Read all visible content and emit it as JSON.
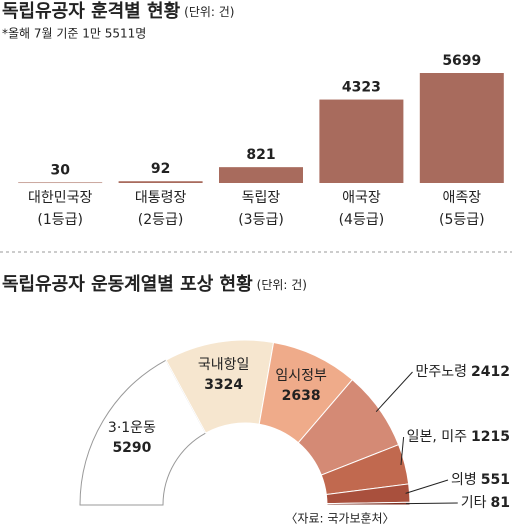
{
  "chart_data": [
    {
      "type": "bar",
      "title": "독립유공자 훈격별 현황",
      "unit": "(단위: 건)",
      "note": "*올해 7월 기준 1만 5511명",
      "categories": [
        "대한민국장",
        "대통령장",
        "독립장",
        "애국장",
        "애족장"
      ],
      "category_notes": [
        "(1등급)",
        "(2등급)",
        "(3등급)",
        "(4등급)",
        "(5등급)"
      ],
      "values": [
        30,
        92,
        821,
        4323,
        5699
      ],
      "color": "#a86b5d"
    },
    {
      "type": "pie",
      "title": "독립유공자 운동계열별 포상 현황",
      "unit": "(단위: 건)",
      "source": "〈자료: 국가보훈처〉",
      "categories": [
        "3·1운동",
        "국내항일",
        "임시정부",
        "만주노령",
        "일본, 미주",
        "의병",
        "기타"
      ],
      "values": [
        5290,
        3324,
        2638,
        2412,
        1215,
        551,
        81
      ],
      "colors": [
        "#ffffff",
        "#f6e6cf",
        "#efab8a",
        "#d48a75",
        "#c1694f",
        "#a9503d",
        "#7b2f22"
      ]
    }
  ]
}
